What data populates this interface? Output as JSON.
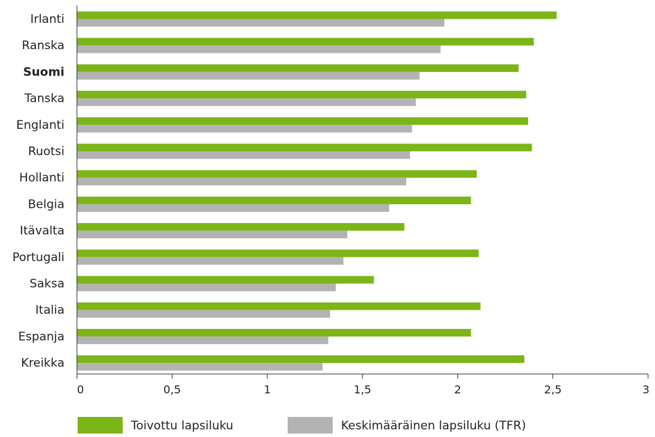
{
  "chart_data": {
    "type": "bar",
    "orientation": "horizontal",
    "title": "",
    "xlabel": "",
    "ylabel": "",
    "categories": [
      "Irlanti",
      "Ranska",
      "Suomi",
      "Tanska",
      "Englanti",
      "Ruotsi",
      "Hollanti",
      "Belgia",
      "Itävalta",
      "Portugali",
      "Saksa",
      "Italia",
      "Espanja",
      "Kreikka"
    ],
    "highlight_category": "Suomi",
    "series": [
      {
        "name": "Toivottu lapsiluku",
        "color": "#7cb518",
        "values": [
          2.52,
          2.4,
          2.32,
          2.36,
          2.37,
          2.39,
          2.1,
          2.07,
          1.72,
          2.11,
          1.56,
          2.12,
          2.07,
          2.35
        ]
      },
      {
        "name": "Keskimääräinen lapsiluku (TFR)",
        "color": "#b3b3b3",
        "values": [
          1.93,
          1.91,
          1.8,
          1.78,
          1.76,
          1.75,
          1.73,
          1.64,
          1.42,
          1.4,
          1.36,
          1.33,
          1.32,
          1.29
        ]
      }
    ],
    "xlim": [
      0,
      3
    ],
    "xticks": [
      0,
      0.5,
      1,
      1.5,
      2,
      2.5,
      3
    ],
    "xtick_labels": [
      "0",
      "0,5",
      "1",
      "1,5",
      "2",
      "2,5",
      "3"
    ],
    "grid": false,
    "legend_position": "bottom"
  }
}
